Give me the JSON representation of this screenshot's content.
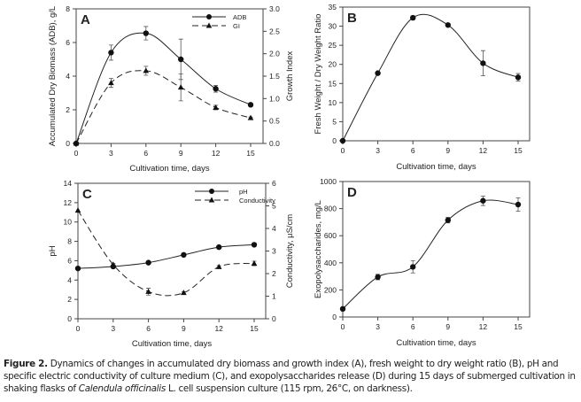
{
  "chart_data": [
    {
      "type": "line",
      "panel_label": "A",
      "xlabel": "Cultivation time, days",
      "ylabel": "Accumulated Dry Biomass (ADB), g/L",
      "y2label": "Growth Index",
      "x": [
        0,
        3,
        6,
        9,
        12,
        15
      ],
      "xlim": [
        0,
        15
      ],
      "xticks": [
        0,
        3,
        6,
        9,
        12,
        15
      ],
      "ylim": [
        0,
        8
      ],
      "yticks": [
        0,
        2,
        4,
        6,
        8
      ],
      "y2lim": [
        0,
        3
      ],
      "y2ticks": [
        "0.0",
        "0.5",
        "1.0",
        "1.5",
        "2.0",
        "2.5",
        "3.0"
      ],
      "legend": "top-right",
      "series": [
        {
          "name": "ADB",
          "axis": "left",
          "marker": "circle",
          "line": "solid",
          "values": [
            0,
            5.4,
            6.55,
            5.0,
            3.25,
            2.3
          ],
          "errors": [
            0,
            0.45,
            0.4,
            1.2,
            0.2,
            0.05
          ]
        },
        {
          "name": "GI",
          "axis": "right",
          "marker": "triangle",
          "line": "dashed",
          "values": [
            0,
            1.35,
            1.62,
            1.25,
            0.8,
            0.57
          ],
          "errors": [
            0,
            0.1,
            0.1,
            0.3,
            0.05,
            0.02
          ]
        }
      ]
    },
    {
      "type": "line",
      "panel_label": "B",
      "xlabel": "Cultivation time, days",
      "ylabel": "Fresh Weight / Dry Weight Ratio",
      "x": [
        0,
        3,
        6,
        9,
        12,
        15
      ],
      "xlim": [
        0,
        15
      ],
      "xticks": [
        0,
        3,
        6,
        9,
        12,
        15
      ],
      "ylim": [
        0,
        35
      ],
      "yticks": [
        0,
        5,
        10,
        15,
        20,
        25,
        30,
        35
      ],
      "series": [
        {
          "marker": "circle",
          "line": "solid",
          "axis": "left",
          "values": [
            0,
            17.7,
            32.2,
            30.3,
            20.3,
            16.6
          ],
          "errors": [
            0,
            0.3,
            0.5,
            0.3,
            3.3,
            1.0
          ]
        }
      ]
    },
    {
      "type": "line",
      "panel_label": "C",
      "xlabel": "Cultivation time, days",
      "ylabel": "pH",
      "y2label": "Conductivity, µS/cm",
      "x": [
        0,
        3,
        6,
        9,
        12,
        15
      ],
      "xlim": [
        0,
        15
      ],
      "xticks": [
        0,
        3,
        6,
        9,
        12,
        15
      ],
      "ylim": [
        0,
        14
      ],
      "yticks": [
        0,
        2,
        4,
        6,
        8,
        10,
        12,
        14
      ],
      "y2lim": [
        0,
        6
      ],
      "y2ticks": [
        "0",
        "1",
        "2",
        "3",
        "4",
        "5",
        "6"
      ],
      "legend": "top-right",
      "series": [
        {
          "name": "pH",
          "axis": "left",
          "marker": "circle",
          "line": "solid",
          "values": [
            5.2,
            5.4,
            5.8,
            6.6,
            7.4,
            7.65
          ],
          "errors": [
            0,
            0.05,
            0.05,
            0.05,
            0.05,
            0.05
          ]
        },
        {
          "name": "Conductivity",
          "axis": "right",
          "marker": "triangle",
          "line": "dashed",
          "values": [
            4.8,
            2.4,
            1.2,
            1.15,
            2.3,
            2.45
          ],
          "errors": [
            0,
            0.05,
            0.15,
            0.05,
            0.05,
            0.1
          ]
        }
      ]
    },
    {
      "type": "line",
      "panel_label": "D",
      "xlabel": "Cultivation time, days",
      "ylabel": "Exopolysaccharides, mg/L",
      "x": [
        0,
        3,
        6,
        9,
        12,
        15
      ],
      "xlim": [
        0,
        15
      ],
      "xticks": [
        0,
        3,
        6,
        9,
        12,
        15
      ],
      "ylim": [
        0,
        1000
      ],
      "yticks": [
        0,
        200,
        400,
        600,
        800,
        1000
      ],
      "series": [
        {
          "marker": "circle",
          "line": "solid",
          "axis": "left",
          "values": [
            60,
            295,
            370,
            715,
            858,
            830
          ],
          "errors": [
            0,
            20,
            45,
            20,
            35,
            50
          ]
        }
      ]
    }
  ],
  "caption": {
    "label": "Figure 2.",
    "text_1": " Dynamics of changes in accumulated dry biomass and growth index (A), fresh weight to dry weight ratio (B), pH and specific electric conductivity of culture medium (C), and exopolysaccharides release (D) during 15 days of submerged cultivation in shaking flasks of ",
    "species": "Calendula officinalis",
    "text_2": " L. cell suspension culture (115 rpm, 26°C, on darkness)."
  }
}
